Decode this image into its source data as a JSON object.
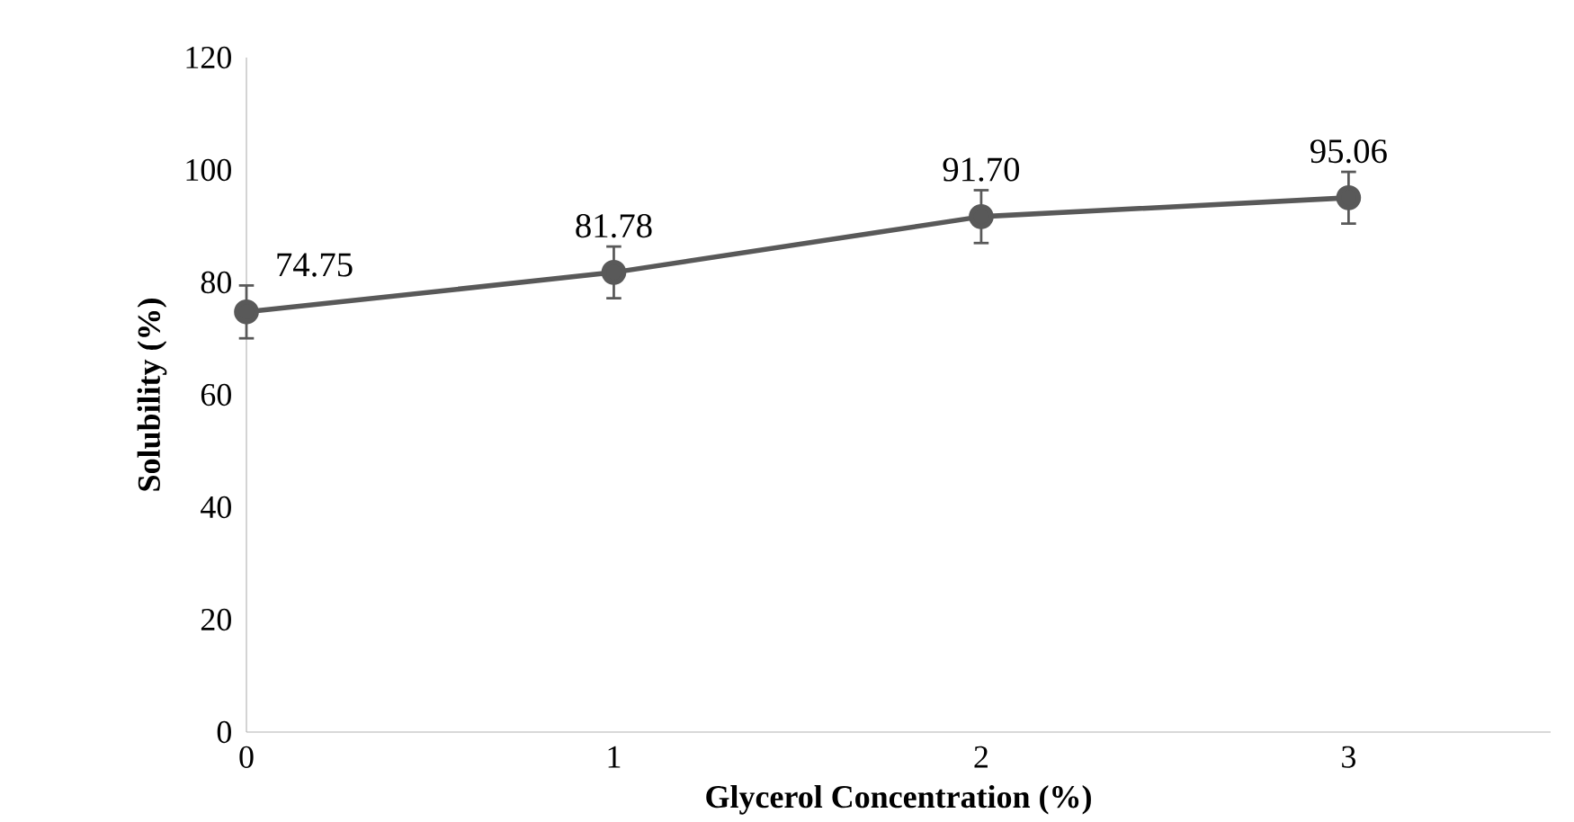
{
  "chart_data": {
    "type": "line",
    "xlabel": "Glycerol Concentration (%)",
    "ylabel": "Solubility  (%)",
    "x": [
      0,
      1,
      2,
      3
    ],
    "series": [
      {
        "color": "#595959",
        "values": [
          74.75,
          81.78,
          91.7,
          95.06
        ],
        "errors": [
          4.7,
          4.6,
          4.7,
          4.6
        ],
        "value_labels": [
          "74.75",
          "81.78",
          "91.70",
          "95.06"
        ]
      }
    ],
    "xlim": [
      0,
      3.55
    ],
    "xticks": [
      0,
      1,
      2,
      3
    ],
    "ylim": [
      0,
      120
    ],
    "yticks": [
      0,
      20,
      40,
      60,
      80,
      100,
      120
    ],
    "marker": "circle",
    "line_style": "solid"
  }
}
